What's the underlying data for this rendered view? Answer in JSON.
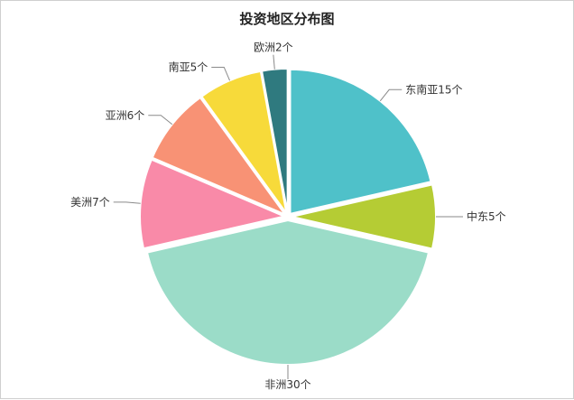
{
  "chart_data": {
    "type": "pie",
    "title": "投资地区分布图",
    "categories": [
      "东南亚15个",
      "中东5个",
      "非洲30个",
      "美洲7个",
      "亚洲6个",
      "南亚5个",
      "欧洲2个"
    ],
    "values": [
      15,
      5,
      30,
      7,
      6,
      5,
      2
    ],
    "colors": [
      "#4fc1c9",
      "#b5cc34",
      "#9bdcc8",
      "#f98aa8",
      "#f89275",
      "#f7da3a",
      "#2f7a7f"
    ],
    "legend": "none"
  }
}
